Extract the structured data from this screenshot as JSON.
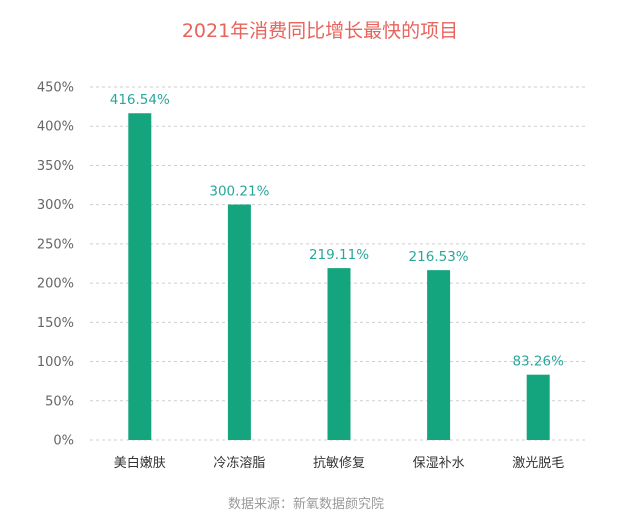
{
  "chart_data": {
    "type": "bar",
    "title": "2021年消费同比增长最快的项目",
    "categories": [
      "美白嫩肤",
      "冷冻溶脂",
      "抗敏修复",
      "保湿补水",
      "激光脱毛"
    ],
    "values": [
      416.54,
      300.21,
      219.11,
      216.53,
      83.26
    ],
    "data_labels": [
      "416.54%",
      "300.21%",
      "219.11%",
      "216.53%",
      "83.26%"
    ],
    "y_ticks": [
      "0%",
      "50%",
      "100%",
      "150%",
      "200%",
      "250%",
      "300%",
      "350%",
      "400%",
      "450%"
    ],
    "ylim": [
      0,
      450
    ],
    "xlabel": "",
    "ylabel": "",
    "grid": true,
    "bar_color": "#14a57e",
    "label_color": "#2aa79b",
    "title_color": "#e8635c"
  },
  "source": "数据来源：新氧数据颜究院"
}
